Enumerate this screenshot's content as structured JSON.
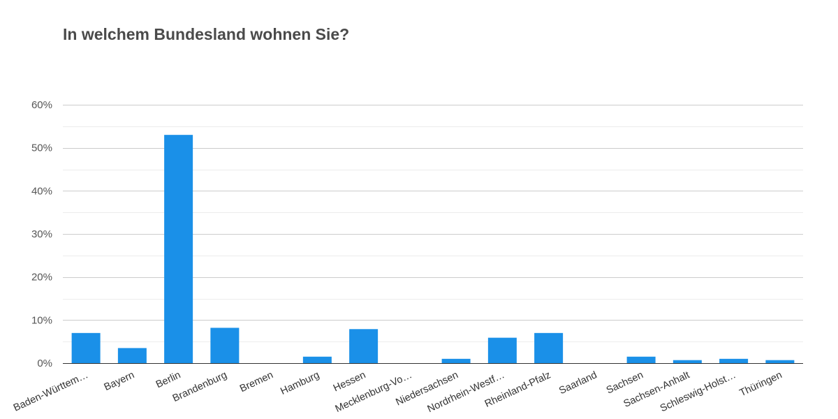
{
  "chart_data": {
    "type": "bar",
    "title": "In welchem Bundesland wohnen Sie?",
    "xlabel": "",
    "ylabel": "",
    "categories": [
      "Baden-Württem…",
      "Bayern",
      "Berlin",
      "Brandenburg",
      "Bremen",
      "Hamburg",
      "Hessen",
      "Mecklenburg-Vo…",
      "Niedersachsen",
      "Nordrhein-Westf…",
      "Rheinland-Pfalz",
      "Saarland",
      "Sachsen",
      "Sachsen-Anhalt",
      "Schleswig-Holst…",
      "Thüringen"
    ],
    "values": [
      7.0,
      3.5,
      53.0,
      8.2,
      0.0,
      1.5,
      7.9,
      0.0,
      1.0,
      5.9,
      7.0,
      0.0,
      1.5,
      0.7,
      1.0,
      0.7
    ],
    "ylim": [
      0,
      60
    ],
    "yticks": [
      0,
      10,
      20,
      30,
      40,
      50,
      60
    ],
    "ytick_labels": [
      "0%",
      "10%",
      "20%",
      "30%",
      "40%",
      "50%",
      "60%"
    ],
    "grid": true,
    "legend": "none",
    "colors": {
      "bar": "#1a90e8",
      "gridline": "#cccccc",
      "minor_gridline": "#ececec",
      "axis": "#333333",
      "title": "#4a4a4a"
    }
  }
}
